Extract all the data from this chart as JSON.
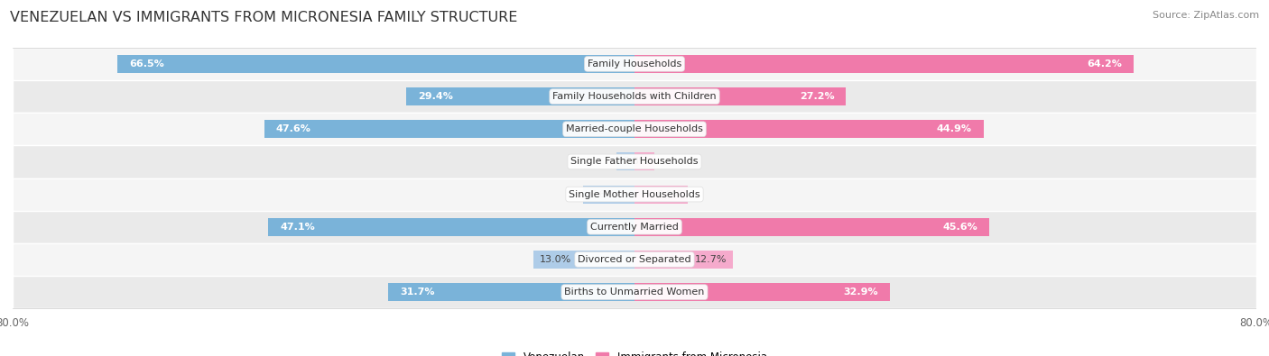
{
  "title": "VENEZUELAN VS IMMIGRANTS FROM MICRONESIA FAMILY STRUCTURE",
  "source": "Source: ZipAtlas.com",
  "categories": [
    "Family Households",
    "Family Households with Children",
    "Married-couple Households",
    "Single Father Households",
    "Single Mother Households",
    "Currently Married",
    "Divorced or Separated",
    "Births to Unmarried Women"
  ],
  "venezuelan": [
    66.5,
    29.4,
    47.6,
    2.3,
    6.6,
    47.1,
    13.0,
    31.7
  ],
  "micronesia": [
    64.2,
    27.2,
    44.9,
    2.6,
    6.9,
    45.6,
    12.7,
    32.9
  ],
  "max_val": 80.0,
  "blue_color": "#7ab3d9",
  "blue_light": "#aecce8",
  "pink_color": "#f07aaa",
  "pink_light": "#f5aacc",
  "blue_label": "Venezuelan",
  "pink_label": "Immigrants from Micronesia",
  "row_bg_light": "#f5f5f5",
  "row_bg_dark": "#eaeaea",
  "title_fontsize": 11.5,
  "label_fontsize": 8,
  "tick_fontsize": 8.5,
  "source_fontsize": 8,
  "bar_height": 0.55
}
